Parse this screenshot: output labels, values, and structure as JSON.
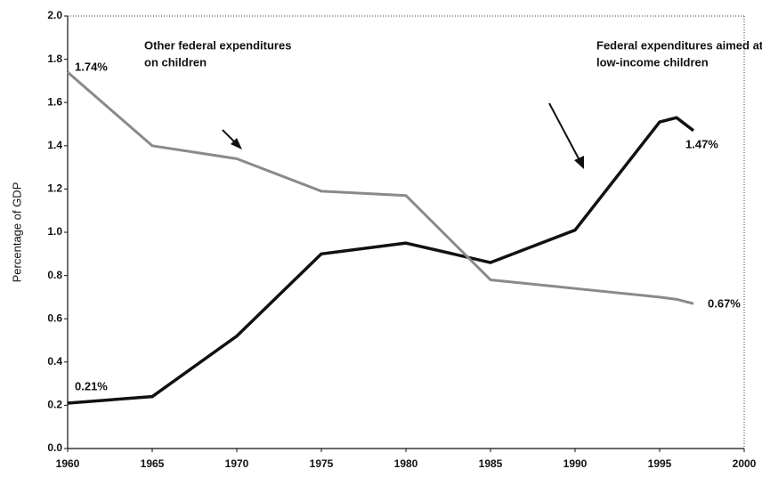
{
  "chart_data": {
    "type": "line",
    "y_label": "Percentage of GDP",
    "x": [
      1960,
      1965,
      1970,
      1975,
      1980,
      1985,
      1990,
      1995,
      1996,
      1997
    ],
    "series": [
      {
        "name": "Federal expenditures aimed at low-income children",
        "color": "#111111",
        "values": [
          0.21,
          0.24,
          0.52,
          0.9,
          0.95,
          0.86,
          1.01,
          1.51,
          1.53,
          1.47
        ]
      },
      {
        "name": "Other federal expenditures on children",
        "color": "#8a8a8a",
        "values": [
          1.74,
          1.4,
          1.34,
          1.19,
          1.17,
          0.78,
          0.74,
          0.7,
          0.69,
          0.67
        ]
      }
    ],
    "xlim": [
      1960,
      2000
    ],
    "xticks": [
      1960,
      1965,
      1970,
      1975,
      1980,
      1985,
      1990,
      1995,
      2000
    ],
    "ylim": [
      0,
      2
    ],
    "yticks": [
      {
        "value": 0,
        "label": "0.0"
      },
      0.2,
      0.4,
      0.6,
      0.8,
      {
        "value": 1,
        "label": "1.0"
      },
      1.2,
      1.4,
      1.6,
      1.8,
      {
        "value": 2,
        "label": "2.0"
      }
    ],
    "annotations": [
      {
        "text": [
          "Other federal expenditures",
          "on children"
        ]
      },
      {
        "text": [
          "Federal expenditures aimed at",
          "low-income children"
        ]
      },
      {
        "text": [
          "1.74%"
        ]
      },
      {
        "text": [
          "0.21%"
        ]
      },
      {
        "text": [
          "1.47%"
        ]
      },
      {
        "text": [
          "0.67%"
        ]
      }
    ]
  }
}
